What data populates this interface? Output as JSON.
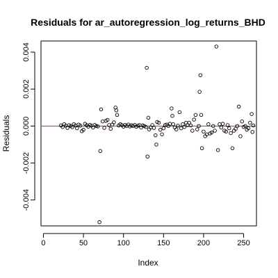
{
  "chart_data": {
    "type": "scatter",
    "title": "Residuals for ar_autoregression_log_returns_BHD",
    "xlabel": "Index",
    "ylabel": "Residuals",
    "xlim": [
      -3,
      266
    ],
    "ylim": [
      -0.0054,
      0.0046
    ],
    "x_ticks": [
      0,
      50,
      100,
      150,
      200,
      250
    ],
    "x_tick_labels": [
      "0",
      "50",
      "100",
      "150",
      "200",
      "250"
    ],
    "y_ticks": [
      -0.004,
      -0.002,
      0.0,
      0.002,
      0.004
    ],
    "y_tick_labels": [
      "-0.004",
      "-0.002",
      "0.000",
      "0.002",
      "0.004"
    ],
    "reference_line": {
      "y": 0,
      "color": "#e8191e"
    },
    "points": [
      [
        22,
        3e-05
      ],
      [
        24,
        -5e-05
      ],
      [
        26,
        0.0001
      ],
      [
        28,
        2e-05
      ],
      [
        30,
        -0.0001
      ],
      [
        32,
        5e-05
      ],
      [
        34,
        0.0
      ],
      [
        36,
        -6e-05
      ],
      [
        38,
        0.0001
      ],
      [
        40,
        3e-05
      ],
      [
        42,
        -0.00012
      ],
      [
        44,
        8e-05
      ],
      [
        46,
        2e-05
      ],
      [
        48,
        -0.00028
      ],
      [
        50,
        -0.0002
      ],
      [
        52,
        0.00012
      ],
      [
        54,
        4e-05
      ],
      [
        56,
        -3e-05
      ],
      [
        58,
        6e-05
      ],
      [
        60,
        2e-05
      ],
      [
        62,
        -8e-05
      ],
      [
        64,
        6e-05
      ],
      [
        66,
        0.0
      ],
      [
        68,
        -2e-05
      ],
      [
        70,
        -0.0052
      ],
      [
        71,
        -0.00135
      ],
      [
        72,
        0.0009
      ],
      [
        74,
        0.00025
      ],
      [
        76,
        -0.0001
      ],
      [
        78,
        0.00028
      ],
      [
        80,
        0.00033
      ],
      [
        82,
        5e-05
      ],
      [
        84,
        -0.00015
      ],
      [
        86,
        8e-05
      ],
      [
        88,
        0.0002
      ],
      [
        90,
        0.001
      ],
      [
        91,
        0.00085
      ],
      [
        92,
        0.0006
      ],
      [
        94,
        3e-05
      ],
      [
        96,
        0.0001
      ],
      [
        98,
        5e-05
      ],
      [
        100,
        -3e-05
      ],
      [
        102,
        6e-05
      ],
      [
        104,
        0.0
      ],
      [
        106,
        8e-05
      ],
      [
        108,
        -2e-05
      ],
      [
        110,
        4e-05
      ],
      [
        112,
        0.0
      ],
      [
        114,
        6e-05
      ],
      [
        116,
        -4e-05
      ],
      [
        118,
        2e-05
      ],
      [
        120,
        5e-05
      ],
      [
        122,
        -8e-05
      ],
      [
        124,
        3e-05
      ],
      [
        126,
        0.0
      ],
      [
        128,
        -5e-05
      ],
      [
        129,
        0.00315
      ],
      [
        130,
        -0.00165
      ],
      [
        131,
        0.00045
      ],
      [
        132,
        -0.00018
      ],
      [
        134,
        -8e-05
      ],
      [
        136,
        5e-05
      ],
      [
        138,
        -0.0001
      ],
      [
        140,
        -0.0005
      ],
      [
        141,
        -0.001
      ],
      [
        142,
        0.00022
      ],
      [
        144,
        0.00018
      ],
      [
        146,
        -0.0002
      ],
      [
        148,
        -0.00045
      ],
      [
        150,
        -0.00012
      ],
      [
        152,
        5e-05
      ],
      [
        154,
        8e-05
      ],
      [
        156,
        0.0
      ],
      [
        158,
        0.00012
      ],
      [
        160,
        0.00095
      ],
      [
        161,
        0.00055
      ],
      [
        162,
        0.0001
      ],
      [
        164,
        -8e-05
      ],
      [
        166,
        -0.00018
      ],
      [
        168,
        2e-05
      ],
      [
        170,
        0.00075
      ],
      [
        172,
        -0.00012
      ],
      [
        174,
        0.0001
      ],
      [
        176,
        -5e-05
      ],
      [
        178,
        0.00018
      ],
      [
        180,
        5e-05
      ],
      [
        182,
        0.00018
      ],
      [
        184,
        3e-05
      ],
      [
        186,
        -0.00025
      ],
      [
        188,
        0.00035
      ],
      [
        190,
        0.0006
      ],
      [
        192,
        -0.00018
      ],
      [
        194,
        0.0
      ],
      [
        195,
        0.00185
      ],
      [
        196,
        0.00275
      ],
      [
        197,
        0.0006
      ],
      [
        198,
        -0.0012
      ],
      [
        200,
        -0.0003
      ],
      [
        202,
        -0.00055
      ],
      [
        204,
        -0.00045
      ],
      [
        206,
        0.0001
      ],
      [
        208,
        -0.0004
      ],
      [
        210,
        -0.00035
      ],
      [
        212,
        0.0
      ],
      [
        214,
        -0.00025
      ],
      [
        216,
        0.0043
      ],
      [
        218,
        -0.0013
      ],
      [
        220,
        0.0001
      ],
      [
        222,
        -8e-05
      ],
      [
        224,
        0.00012
      ],
      [
        226,
        -0.00025
      ],
      [
        228,
        -0.0003
      ],
      [
        230,
        5e-05
      ],
      [
        232,
        -0.00012
      ],
      [
        234,
        -0.00038
      ],
      [
        236,
        -0.0012
      ],
      [
        238,
        -0.00025
      ],
      [
        240,
        -0.00015
      ],
      [
        242,
        0.0
      ],
      [
        244,
        0.00105
      ],
      [
        246,
        -0.00055
      ],
      [
        248,
        0.00025
      ],
      [
        250,
        -5e-05
      ],
      [
        252,
        0.0
      ],
      [
        254,
        -0.0002
      ],
      [
        256,
        -0.00012
      ],
      [
        258,
        0.00018
      ],
      [
        260,
        0.00065
      ],
      [
        261,
        -0.00032
      ],
      [
        262,
        3e-05
      ]
    ]
  }
}
